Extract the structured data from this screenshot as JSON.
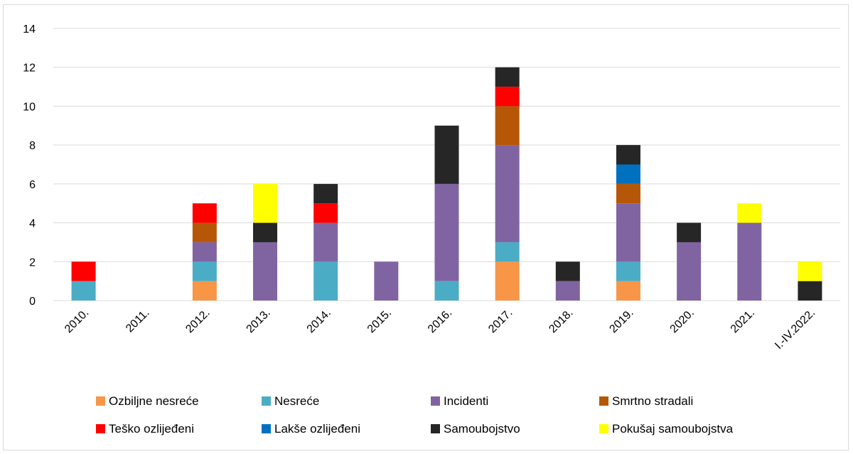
{
  "chart_data": {
    "type": "bar",
    "stacked": true,
    "title": "",
    "xlabel": "",
    "ylabel": "",
    "ylim": [
      0,
      14
    ],
    "yticks": [
      0,
      2,
      4,
      6,
      8,
      10,
      12,
      14
    ],
    "grid": "horizontal",
    "legend_position": "bottom",
    "categories": [
      "2010.",
      "2011.",
      "2012.",
      "2013.",
      "2014.",
      "2015.",
      "2016.",
      "2017.",
      "2018.",
      "2019.",
      "2020.",
      "2021.",
      "I.-IV.2022."
    ],
    "series": [
      {
        "name": "Ozbiljne nesreće",
        "color": "#f79646",
        "values": [
          0,
          0,
          1,
          0,
          0,
          0,
          0,
          2,
          0,
          1,
          0,
          0,
          0
        ]
      },
      {
        "name": "Nesreće",
        "color": "#4bacc6",
        "values": [
          1,
          0,
          1,
          0,
          2,
          0,
          1,
          1,
          0,
          1,
          0,
          0,
          0
        ]
      },
      {
        "name": "Incidenti",
        "color": "#8064a2",
        "values": [
          0,
          0,
          1,
          3,
          2,
          2,
          5,
          5,
          1,
          3,
          3,
          4,
          0
        ]
      },
      {
        "name": "Smrtno stradali",
        "color": "#b65708",
        "values": [
          0,
          0,
          1,
          0,
          0,
          0,
          0,
          2,
          0,
          1,
          0,
          0,
          0
        ]
      },
      {
        "name": "Teško ozlijeđeni",
        "color": "#ff0000",
        "values": [
          1,
          0,
          1,
          0,
          1,
          0,
          0,
          1,
          0,
          0,
          0,
          0,
          0
        ]
      },
      {
        "name": "Lakše ozlijeđeni",
        "color": "#0070c0",
        "values": [
          0,
          0,
          0,
          0,
          0,
          0,
          0,
          0,
          0,
          1,
          0,
          0,
          0
        ]
      },
      {
        "name": "Samoubojstvo",
        "color": "#262626",
        "values": [
          0,
          0,
          0,
          1,
          1,
          0,
          3,
          1,
          1,
          1,
          1,
          0,
          1
        ]
      },
      {
        "name": "Pokušaj samoubojstva",
        "color": "#ffff00",
        "values": [
          0,
          0,
          0,
          2,
          0,
          0,
          0,
          0,
          0,
          0,
          0,
          1,
          1
        ]
      }
    ]
  }
}
